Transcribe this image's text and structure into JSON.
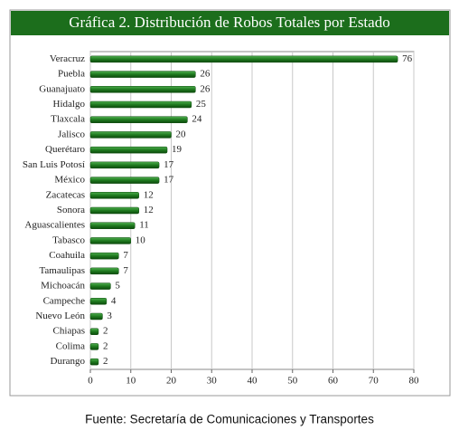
{
  "chart_data": {
    "type": "bar",
    "orientation": "horizontal",
    "title": "Gráfica 2. Distribución de Robos Totales por Estado",
    "categories": [
      "Veracruz",
      "Puebla",
      "Guanajuato",
      "Hidalgo",
      "Tlaxcala",
      "Jalisco",
      "Querétaro",
      "San Luis Potosí",
      "México",
      "Zacatecas",
      "Sonora",
      "Aguascalientes",
      "Tabasco",
      "Coahuila",
      "Tamaulipas",
      "Michoacán",
      "Campeche",
      "Nuevo León",
      "Chiapas",
      "Colima",
      "Durango"
    ],
    "values": [
      76,
      26,
      26,
      25,
      24,
      20,
      19,
      17,
      17,
      12,
      12,
      11,
      10,
      7,
      7,
      5,
      4,
      3,
      2,
      2,
      2
    ],
    "color": "#1f7a1f",
    "xlim": [
      0,
      80
    ],
    "xticks": [
      0,
      10,
      20,
      30,
      40,
      50,
      60,
      70,
      80
    ],
    "grid": true,
    "data_labels": true
  },
  "source": "Fuente: Secretaría de Comunicaciones y Transportes"
}
